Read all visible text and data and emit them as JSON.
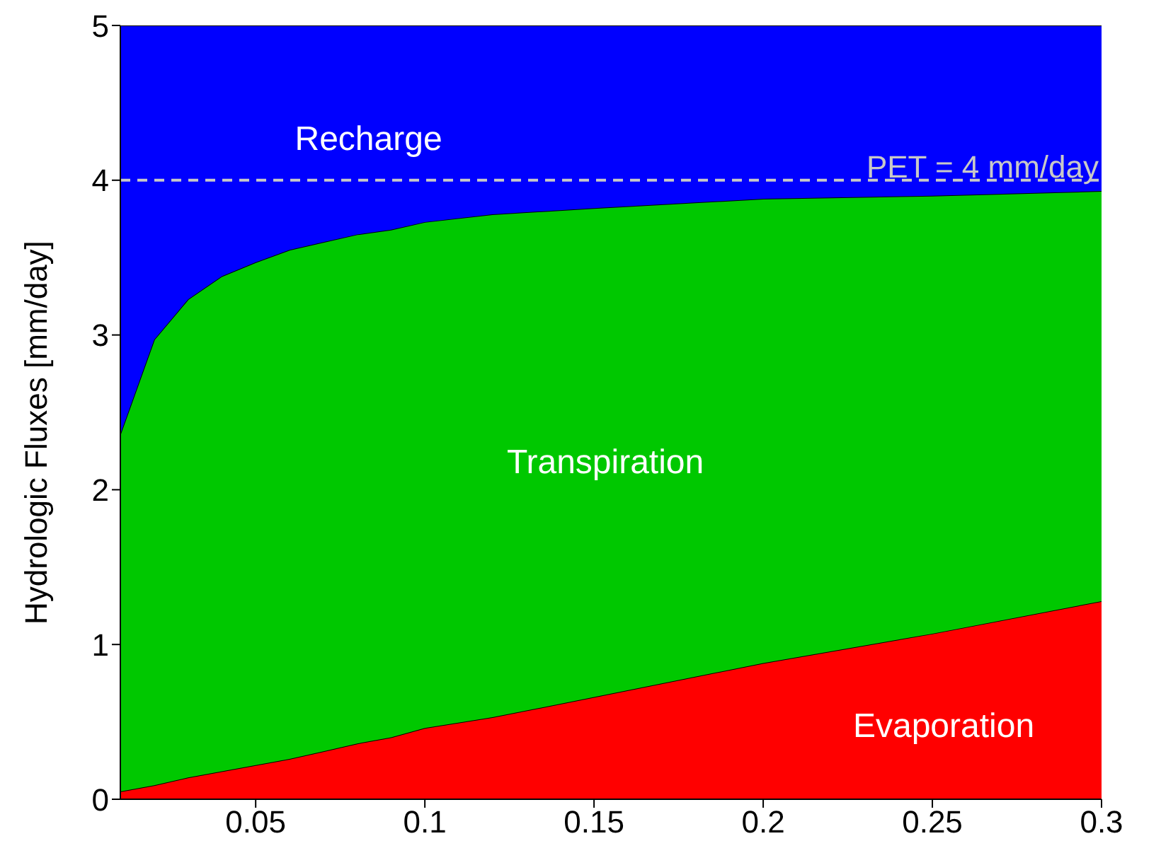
{
  "chart_data": {
    "type": "area",
    "stacked": true,
    "ylabel": "Hydrologic Fluxes [mm/day]",
    "x": [
      0.01,
      0.02,
      0.03,
      0.04,
      0.05,
      0.06,
      0.07,
      0.08,
      0.09,
      0.1,
      0.12,
      0.15,
      0.2,
      0.25,
      0.3
    ],
    "series": [
      {
        "name": "Evaporation",
        "color": "#ff0000",
        "values": [
          0.05,
          0.09,
          0.14,
          0.18,
          0.22,
          0.26,
          0.31,
          0.36,
          0.4,
          0.46,
          0.53,
          0.66,
          0.88,
          1.07,
          1.28
        ]
      },
      {
        "name": "Transpiration",
        "color": "#00c800",
        "values": [
          2.31,
          2.88,
          3.09,
          3.2,
          3.25,
          3.29,
          3.29,
          3.29,
          3.28,
          3.27,
          3.25,
          3.16,
          3.0,
          2.83,
          2.65
        ]
      },
      {
        "name": "Recharge",
        "color": "#0000ff",
        "values": [
          2.64,
          2.03,
          1.77,
          1.62,
          1.53,
          1.45,
          1.4,
          1.35,
          1.32,
          1.27,
          1.22,
          1.18,
          1.12,
          1.1,
          1.07
        ]
      }
    ],
    "xlim": [
      0.01,
      0.3
    ],
    "xticks": [
      0.05,
      0.1,
      0.15,
      0.2,
      0.25,
      0.3
    ],
    "ylim": [
      0,
      5
    ],
    "yticks": [
      0,
      1,
      2,
      3,
      4,
      5
    ],
    "ref_lines": [
      {
        "axis": "y",
        "value": 4,
        "label": "PET = 4 mm/day",
        "color": "#c8c8c8",
        "line_style": "dashed"
      }
    ],
    "grid": false,
    "legend": false
  }
}
